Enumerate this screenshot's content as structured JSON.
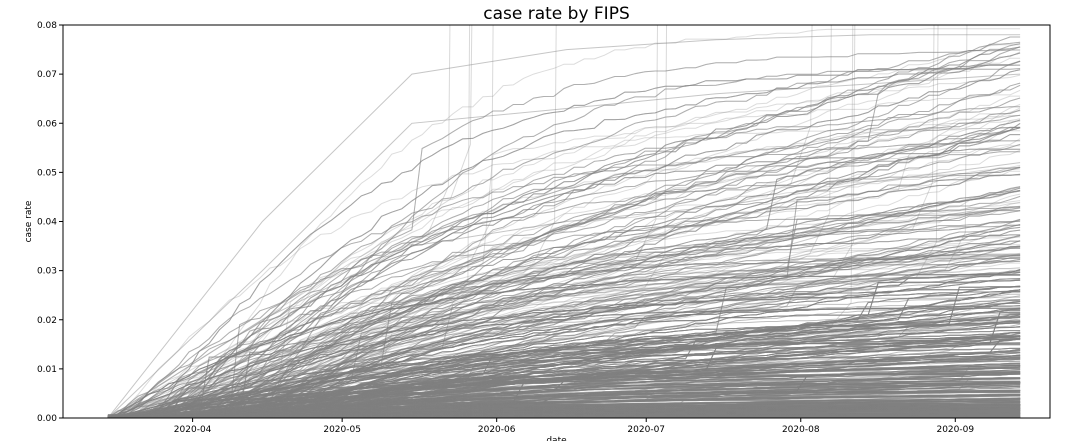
{
  "chart_data": {
    "type": "line",
    "title": "case rate by FIPS",
    "xlabel": "date",
    "ylabel": "case rate",
    "xlim": [
      "2020-03-06",
      "2020-09-20"
    ],
    "ylim": [
      0,
      0.08
    ],
    "x_ticks": [
      "2020-04",
      "2020-05",
      "2020-06",
      "2020-07",
      "2020-08",
      "2020-09"
    ],
    "y_ticks": [
      "0.00",
      "0.01",
      "0.02",
      "0.03",
      "0.04",
      "0.05",
      "0.06",
      "0.07",
      "0.08"
    ],
    "line_color": "#808080",
    "grid": false,
    "legend": "none",
    "date_range": [
      "2020-03-15",
      "2020-09-14"
    ],
    "series_summary": "thousands of overlapping cumulative case-rate curves, one per FIPS county code",
    "representative_series": [
      {
        "x": [
          "2020-03-15",
          "2020-04-15",
          "2020-05-15",
          "2020-06-15",
          "2020-07-15",
          "2020-08-15",
          "2020-09-14"
        ],
        "y": [
          0.0,
          0.002,
          0.005,
          0.008,
          0.012,
          0.018,
          0.024
        ]
      },
      {
        "x": [
          "2020-03-15",
          "2020-04-15",
          "2020-05-15",
          "2020-06-15",
          "2020-07-15",
          "2020-08-15",
          "2020-09-14"
        ],
        "y": [
          0.0,
          0.006,
          0.012,
          0.016,
          0.022,
          0.03,
          0.037
        ]
      },
      {
        "x": [
          "2020-03-15",
          "2020-04-15",
          "2020-05-15",
          "2020-06-15",
          "2020-07-15",
          "2020-08-15",
          "2020-09-14"
        ],
        "y": [
          0.0,
          0.012,
          0.02,
          0.025,
          0.031,
          0.04,
          0.047
        ]
      },
      {
        "x": [
          "2020-03-15",
          "2020-04-15",
          "2020-05-15",
          "2020-06-15",
          "2020-07-15",
          "2020-08-15",
          "2020-09-14"
        ],
        "y": [
          0.0,
          0.02,
          0.035,
          0.04,
          0.043,
          0.048,
          0.052
        ]
      },
      {
        "x": [
          "2020-03-15",
          "2020-04-15",
          "2020-05-15",
          "2020-06-15",
          "2020-07-15",
          "2020-08-15",
          "2020-09-14"
        ],
        "y": [
          0.0,
          0.03,
          0.06,
          0.063,
          0.066,
          0.068,
          0.07
        ]
      },
      {
        "x": [
          "2020-03-15",
          "2020-04-15",
          "2020-05-15",
          "2020-06-15",
          "2020-07-15",
          "2020-08-15",
          "2020-09-14"
        ],
        "y": [
          0.0,
          0.04,
          0.07,
          0.075,
          0.077,
          0.078,
          0.078
        ]
      }
    ]
  }
}
